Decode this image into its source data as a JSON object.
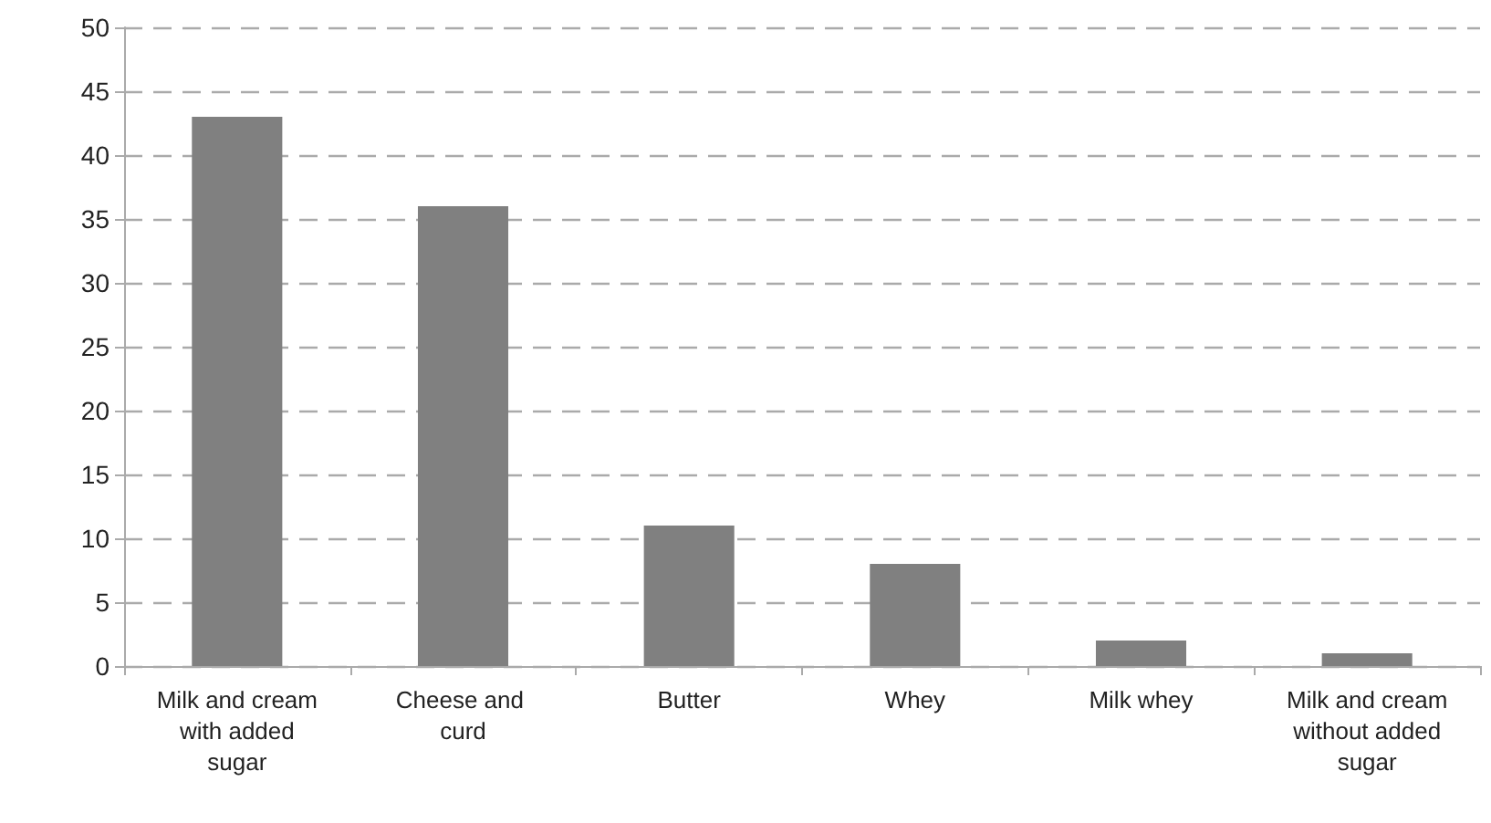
{
  "chart_data": {
    "type": "bar",
    "categories": [
      "Milk and cream with added sugar",
      "Cheese and curd",
      "Butter",
      "Whey",
      "Milk whey",
      "Milk and cream without added sugar"
    ],
    "values": [
      43,
      36,
      11,
      8,
      2,
      1
    ],
    "color": "#808080",
    "ylim": [
      0,
      50
    ],
    "yticks": [
      0,
      5,
      10,
      15,
      20,
      25,
      30,
      35,
      40,
      45,
      50
    ],
    "grid": "y"
  }
}
